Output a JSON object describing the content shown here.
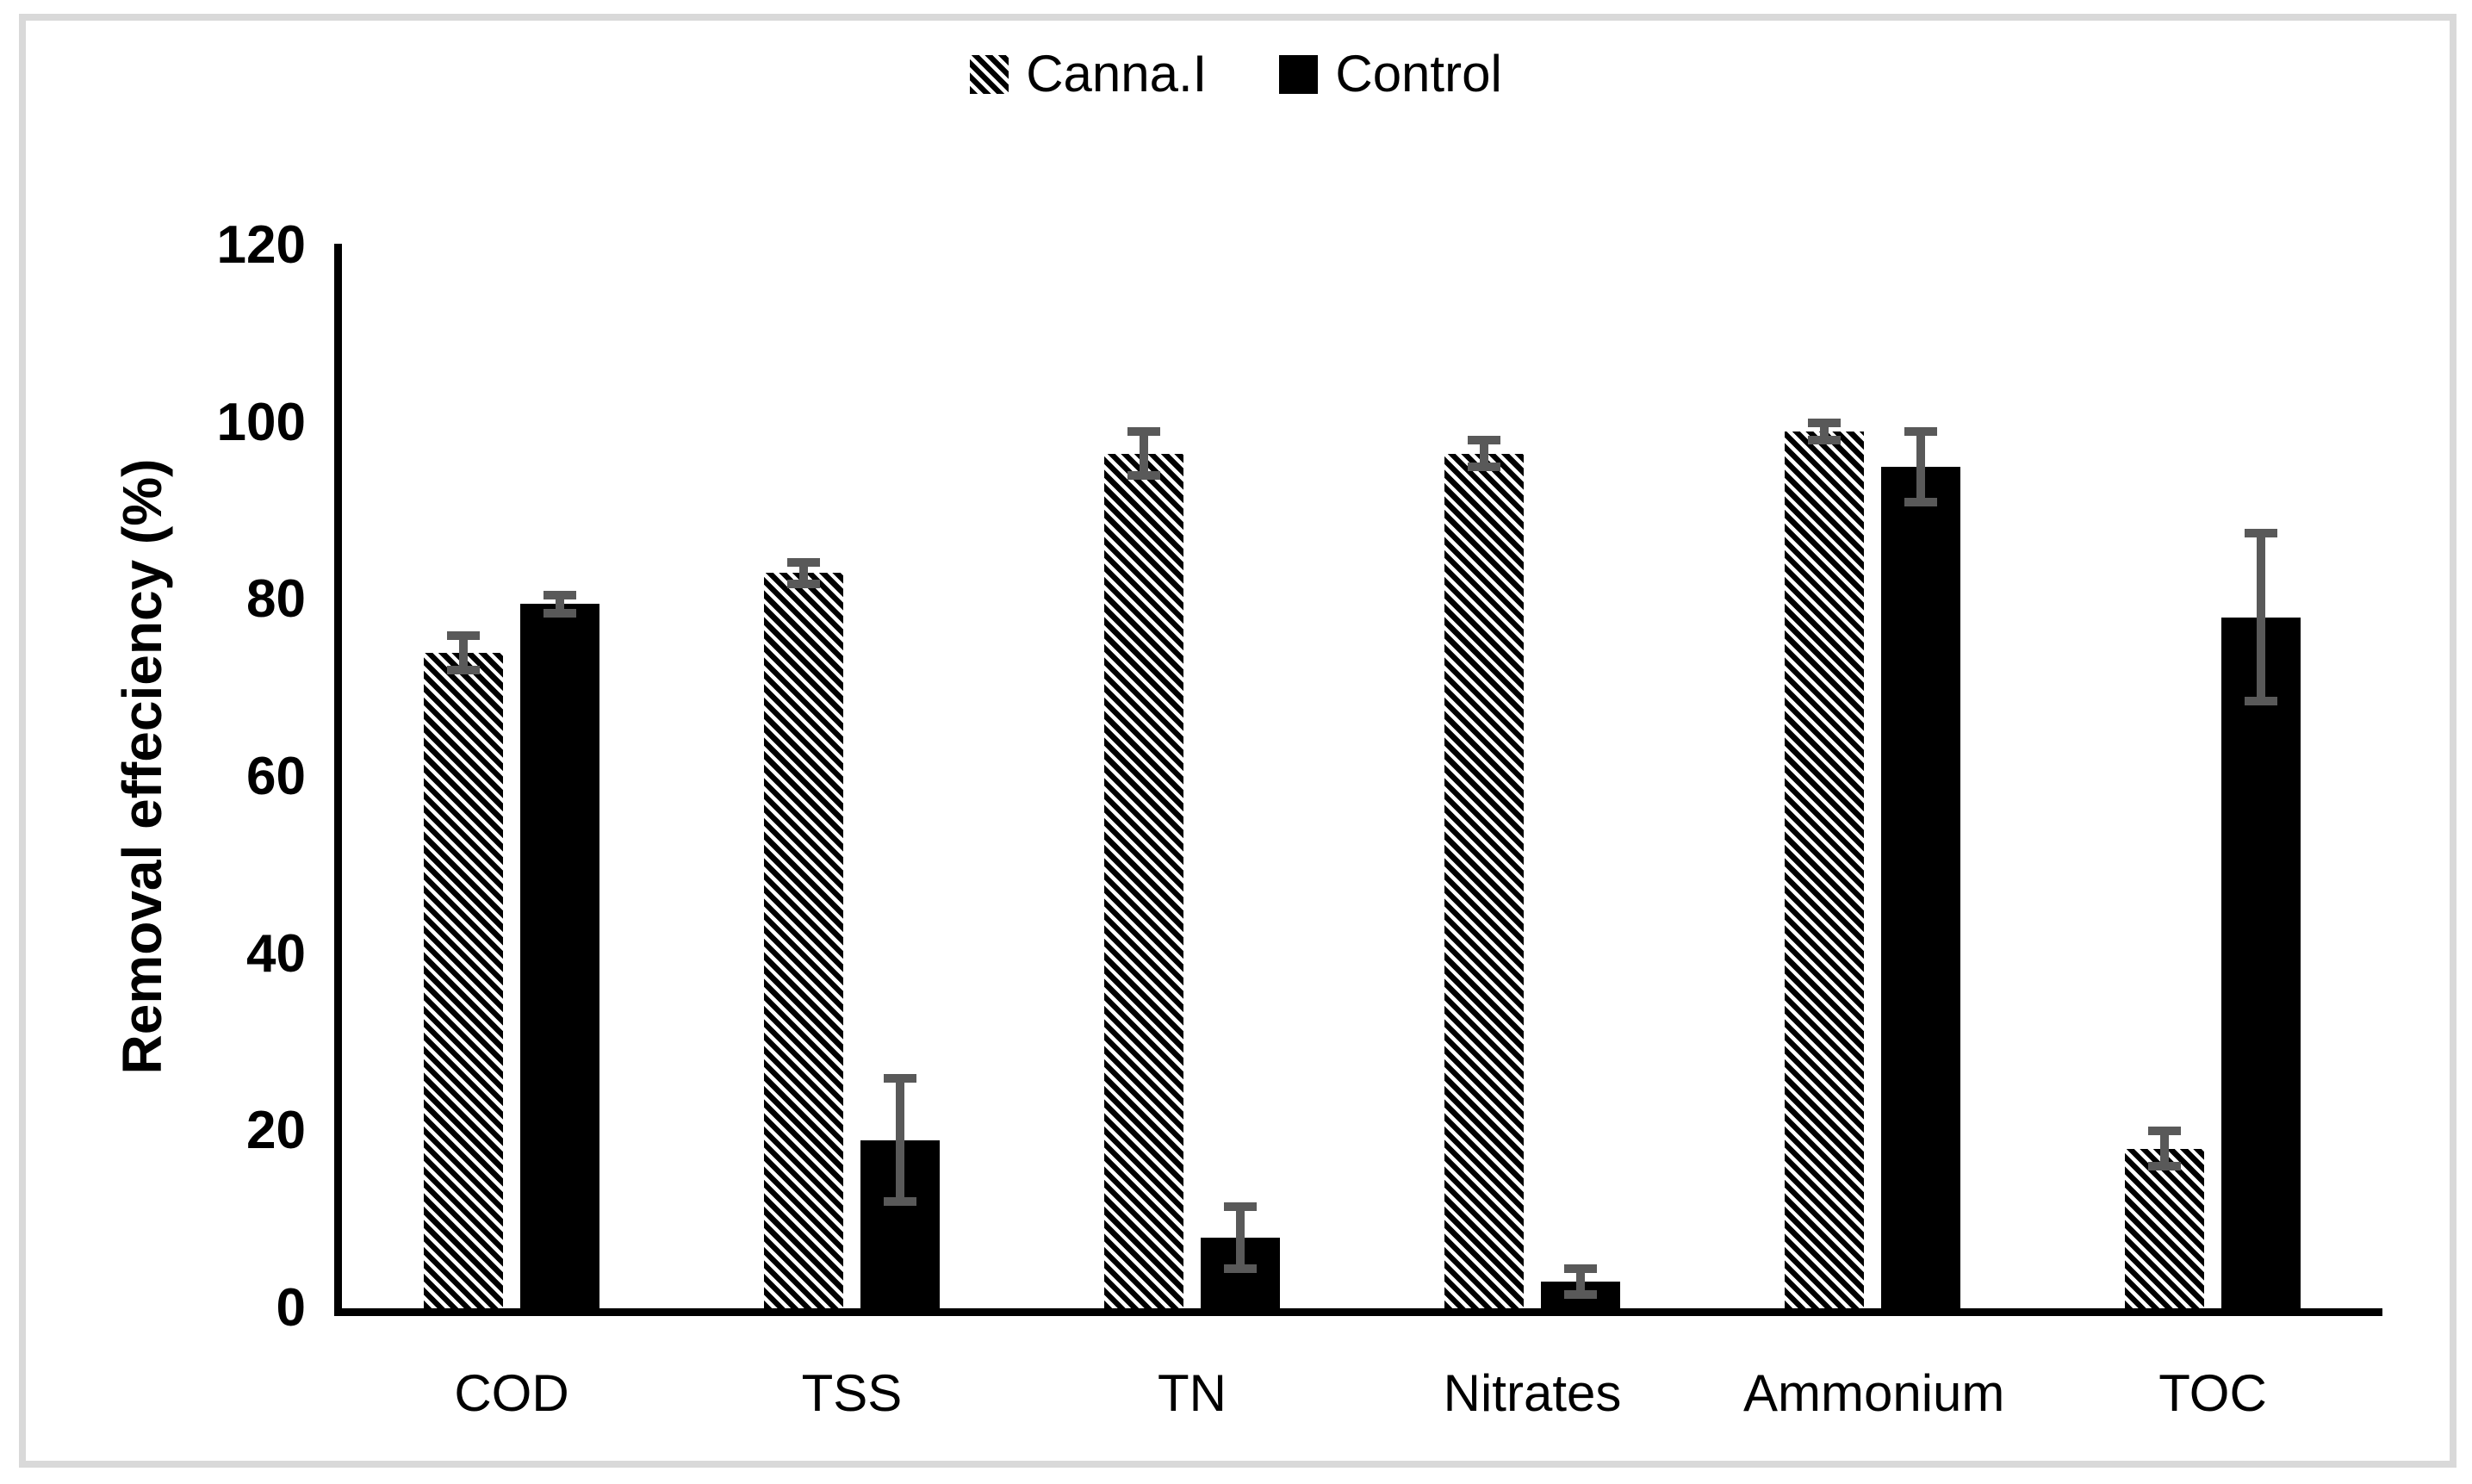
{
  "legend": {
    "items": [
      {
        "label": "Canna.I",
        "swatch": "hatched-diagonal"
      },
      {
        "label": "Control",
        "swatch": "solid-black"
      }
    ]
  },
  "y_axis": {
    "title": "Removal effeciency (%)",
    "ticks": [
      "0",
      "20",
      "40",
      "60",
      "80",
      "100",
      "120"
    ]
  },
  "chart_data": {
    "type": "bar",
    "title": "",
    "categories": [
      "COD",
      "TSS",
      "TN",
      "Nitrates",
      "Ammonium",
      "TOC"
    ],
    "series": [
      {
        "name": "Canna.I",
        "style": "hatched",
        "values": [
          74,
          83,
          96.5,
          96.5,
          99,
          18
        ],
        "errors": [
          1.5,
          0.7,
          2,
          1,
          0.5,
          1.5
        ]
      },
      {
        "name": "Control",
        "style": "solid",
        "values": [
          79.5,
          19,
          8,
          3,
          95,
          78
        ],
        "errors": [
          0.5,
          6.5,
          3,
          1,
          3.5,
          9
        ]
      }
    ],
    "xlabel": "",
    "ylabel": "Removal effeciency (%)",
    "ylim": [
      0,
      120
    ],
    "yticks": [
      0,
      20,
      40,
      60,
      80,
      100,
      120
    ],
    "grid": false,
    "legend_position": "top-center",
    "error_bars": true
  },
  "colors": {
    "bar": "#000000",
    "error_bar": "#595959",
    "axis": "#000000",
    "frame": "#d9d9d9",
    "background": "#ffffff"
  }
}
